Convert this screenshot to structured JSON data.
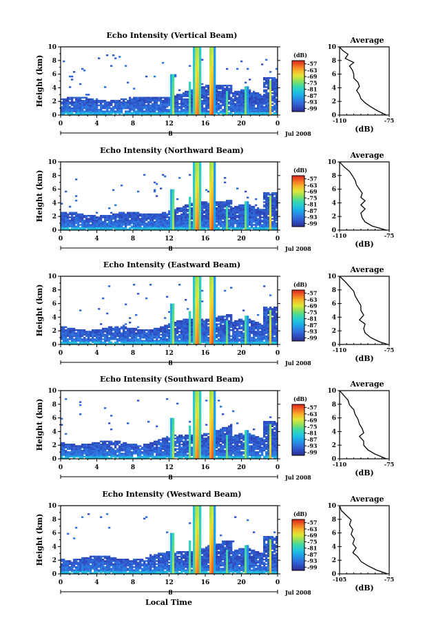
{
  "figure": {
    "x_label": "Local Time",
    "y_label": "Height (km)",
    "date_label": "Jul 2008",
    "day_label": "8",
    "avg_title": "Average",
    "avg_unit": "(dB)",
    "colorbar_unit": "(dB)"
  },
  "chart_data": [
    {
      "type": "heatmap",
      "title": "Echo Intensity (Vertical Beam)",
      "x_ticks": [
        "0",
        "4",
        "8",
        "12",
        "16",
        "20",
        "0"
      ],
      "x_range": [
        0,
        24
      ],
      "y_ticks": [
        "0",
        "2",
        "4",
        "6",
        "8",
        "10"
      ],
      "y_range": [
        0,
        10
      ],
      "colorbar": {
        "ticks": [
          "-57",
          "-63",
          "-69",
          "-75",
          "-81",
          "-87",
          "-93",
          "-99"
        ],
        "range": [
          -102,
          -54
        ]
      },
      "average_profile": {
        "x_ticks": [
          "-110",
          "-75"
        ],
        "x_range": [
          -110,
          -75
        ],
        "points": [
          [
            -110,
            10.0
          ],
          [
            -108,
            9.5
          ],
          [
            -104,
            8.9
          ],
          [
            -106,
            8.3
          ],
          [
            -100,
            7.7
          ],
          [
            -103,
            7.2
          ],
          [
            -101,
            6.6
          ],
          [
            -100,
            6.0
          ],
          [
            -100,
            5.4
          ],
          [
            -97,
            4.8
          ],
          [
            -96,
            4.2
          ],
          [
            -98,
            3.6
          ],
          [
            -96,
            3.0
          ],
          [
            -95,
            2.4
          ],
          [
            -92,
            1.8
          ],
          [
            -88,
            1.2
          ],
          [
            -83,
            0.6
          ],
          [
            -77,
            0.0
          ]
        ]
      }
    },
    {
      "type": "heatmap",
      "title": "Echo Intensity (Northward Beam)",
      "x_ticks": [
        "0",
        "4",
        "8",
        "12",
        "16",
        "20",
        "0"
      ],
      "x_range": [
        0,
        24
      ],
      "y_ticks": [
        "0",
        "2",
        "4",
        "6",
        "8",
        "10"
      ],
      "y_range": [
        0,
        10
      ],
      "colorbar": {
        "ticks": [
          "-57",
          "-63",
          "-69",
          "-75",
          "-81",
          "-87",
          "-93",
          "-99"
        ],
        "range": [
          -102,
          -54
        ]
      },
      "average_profile": {
        "x_ticks": [
          "-110",
          "-75"
        ],
        "x_range": [
          -110,
          -75
        ],
        "points": [
          [
            -110,
            10.0
          ],
          [
            -107,
            9.3
          ],
          [
            -103,
            8.6
          ],
          [
            -101,
            8.0
          ],
          [
            -99,
            7.3
          ],
          [
            -98,
            6.6
          ],
          [
            -96,
            6.0
          ],
          [
            -94,
            5.4
          ],
          [
            -95,
            4.8
          ],
          [
            -92,
            4.3
          ],
          [
            -95,
            3.7
          ],
          [
            -92,
            3.1
          ],
          [
            -95,
            2.5
          ],
          [
            -94,
            1.8
          ],
          [
            -92,
            1.2
          ],
          [
            -87,
            0.6
          ],
          [
            -77,
            0.0
          ]
        ]
      }
    },
    {
      "type": "heatmap",
      "title": "Echo Intensity (Eastward Beam)",
      "x_ticks": [
        "0",
        "4",
        "8",
        "12",
        "16",
        "20",
        "0"
      ],
      "x_range": [
        0,
        24
      ],
      "y_ticks": [
        "0",
        "2",
        "4",
        "6",
        "8",
        "10"
      ],
      "y_range": [
        0,
        10
      ],
      "colorbar": {
        "ticks": [
          "-57",
          "-63",
          "-69",
          "-75",
          "-81",
          "-87",
          "-93",
          "-99"
        ],
        "range": [
          -102,
          -54
        ]
      },
      "average_profile": {
        "x_ticks": [
          "-110",
          "-75"
        ],
        "x_range": [
          -110,
          -75
        ],
        "points": [
          [
            -110,
            10.0
          ],
          [
            -106,
            9.2
          ],
          [
            -103,
            8.5
          ],
          [
            -100,
            7.8
          ],
          [
            -99,
            7.1
          ],
          [
            -97,
            6.4
          ],
          [
            -95,
            5.7
          ],
          [
            -95,
            5.0
          ],
          [
            -93,
            4.3
          ],
          [
            -96,
            3.6
          ],
          [
            -92,
            3.0
          ],
          [
            -93,
            2.3
          ],
          [
            -92,
            1.7
          ],
          [
            -88,
            1.0
          ],
          [
            -82,
            0.4
          ],
          [
            -76,
            0.0
          ]
        ]
      }
    },
    {
      "type": "heatmap",
      "title": "Echo Intensity (Southward Beam)",
      "x_ticks": [
        "0",
        "4",
        "8",
        "12",
        "16",
        "20",
        "0"
      ],
      "x_range": [
        0,
        24
      ],
      "y_ticks": [
        "0",
        "2",
        "4",
        "6",
        "8",
        "10"
      ],
      "y_range": [
        0,
        10
      ],
      "colorbar": {
        "ticks": [
          "-57",
          "-63",
          "-69",
          "-75",
          "-81",
          "-87",
          "-93",
          "-99"
        ],
        "range": [
          -102,
          -54
        ]
      },
      "average_profile": {
        "x_ticks": [
          "-110",
          "-75"
        ],
        "x_range": [
          -110,
          -75
        ],
        "points": [
          [
            -110,
            10.0
          ],
          [
            -107,
            9.3
          ],
          [
            -104,
            8.6
          ],
          [
            -103,
            7.9
          ],
          [
            -100,
            7.2
          ],
          [
            -99,
            6.5
          ],
          [
            -97,
            5.8
          ],
          [
            -96,
            5.1
          ],
          [
            -94,
            4.4
          ],
          [
            -93,
            3.8
          ],
          [
            -96,
            3.3
          ],
          [
            -93,
            2.6
          ],
          [
            -93,
            2.0
          ],
          [
            -90,
            1.3
          ],
          [
            -85,
            0.7
          ],
          [
            -77,
            0.0
          ]
        ]
      }
    },
    {
      "type": "heatmap",
      "title": "Echo Intensity (Westward Beam)",
      "x_ticks": [
        "0",
        "4",
        "8",
        "12",
        "16",
        "20",
        "0"
      ],
      "x_range": [
        0,
        24
      ],
      "y_ticks": [
        "0",
        "2",
        "4",
        "6",
        "8",
        "10"
      ],
      "y_range": [
        0,
        10
      ],
      "colorbar": {
        "ticks": [
          "-57",
          "-63",
          "-69",
          "-75",
          "-81",
          "-87",
          "-93",
          "-99"
        ],
        "range": [
          -102,
          -54
        ]
      },
      "average_profile": {
        "x_ticks": [
          "-105",
          "-75"
        ],
        "x_range": [
          -105,
          -75
        ],
        "points": [
          [
            -105,
            10.0
          ],
          [
            -104,
            9.3
          ],
          [
            -101,
            8.6
          ],
          [
            -98,
            7.9
          ],
          [
            -99,
            7.2
          ],
          [
            -97,
            6.5
          ],
          [
            -98,
            5.8
          ],
          [
            -96,
            5.1
          ],
          [
            -97,
            4.4
          ],
          [
            -95,
            3.8
          ],
          [
            -97,
            3.1
          ],
          [
            -94,
            2.5
          ],
          [
            -92,
            1.8
          ],
          [
            -88,
            1.2
          ],
          [
            -83,
            0.6
          ],
          [
            -76,
            0.0
          ]
        ]
      }
    }
  ],
  "colors": {
    "colormap": [
      "#2b2e8c",
      "#2f4ec4",
      "#2f77e0",
      "#1ea2e8",
      "#22c8dc",
      "#3cd8a8",
      "#8ee05a",
      "#e0e83a",
      "#f7b52a",
      "#f26a22",
      "#d8241c"
    ]
  }
}
